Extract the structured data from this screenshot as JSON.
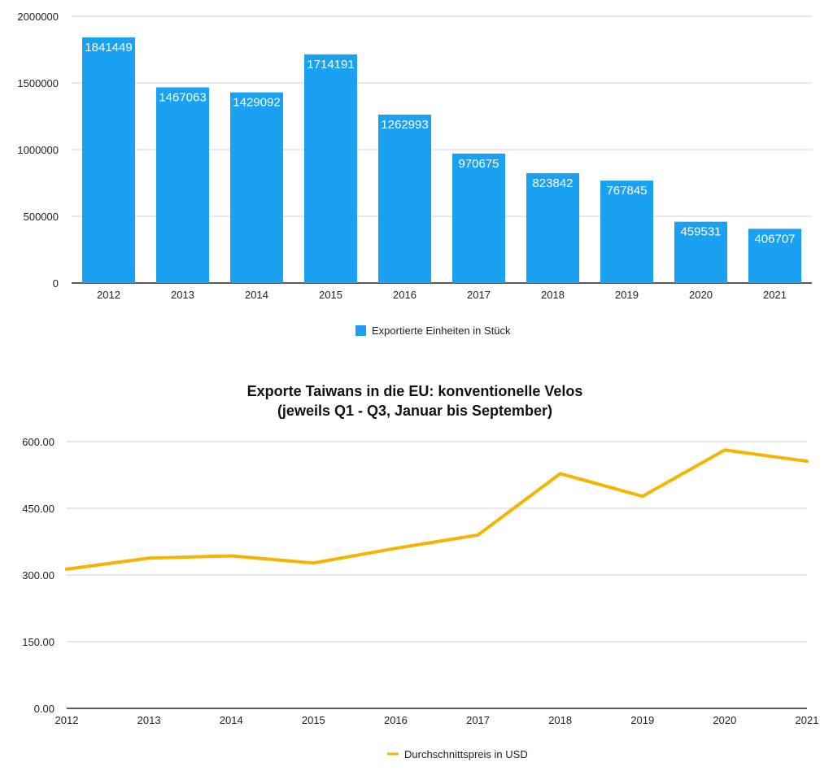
{
  "chart_data": [
    {
      "type": "bar",
      "title": "",
      "categories": [
        "2012",
        "2013",
        "2014",
        "2015",
        "2016",
        "2017",
        "2018",
        "2019",
        "2020",
        "2021"
      ],
      "series": [
        {
          "name": "Exportierte Einheiten in Stück",
          "values": [
            1841449,
            1467063,
            1429092,
            1714191,
            1262993,
            970675,
            823842,
            767845,
            459531,
            406707
          ],
          "color": "#1aa1f2"
        }
      ],
      "ylim": [
        0,
        2000000
      ],
      "yticks": [
        "0",
        "500000",
        "1000000",
        "1500000",
        "2000000"
      ],
      "grid": true,
      "legend": "bottom-center"
    },
    {
      "type": "line",
      "title": "Exporte Taiwans in die EU: konventionelle Velos",
      "subtitle": "(jeweils Q1 - Q3, Januar bis September)",
      "categories": [
        "2012",
        "2013",
        "2014",
        "2015",
        "2016",
        "2017",
        "2018",
        "2019",
        "2020",
        "2021"
      ],
      "series": [
        {
          "name": "Durchschnittspreis in USD",
          "values": [
            313,
            338,
            343,
            327,
            360,
            390,
            528,
            477,
            581,
            556
          ],
          "color": "#f5b400"
        }
      ],
      "ylim": [
        0,
        600
      ],
      "yticks": [
        "0.00",
        "150.00",
        "300.00",
        "450.00",
        "600.00"
      ],
      "grid": true,
      "legend": "bottom-center"
    }
  ]
}
